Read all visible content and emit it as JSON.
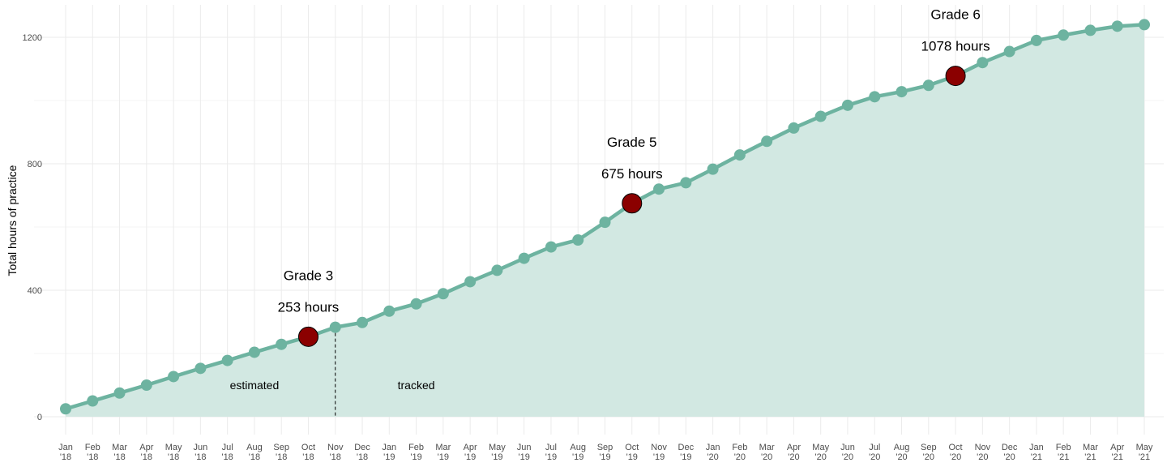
{
  "chart_data": {
    "type": "area",
    "title": "",
    "xlabel": "",
    "ylabel": "Total hours of practice",
    "ylim": [
      0,
      1270
    ],
    "yticks": [
      0,
      400,
      800,
      1200
    ],
    "grid": true,
    "x": [
      "Jan\n'18",
      "Feb\n'18",
      "Mar\n'18",
      "Apr\n'18",
      "May\n'18",
      "Jun\n'18",
      "Jul\n'18",
      "Aug\n'18",
      "Sep\n'18",
      "Oct\n'18",
      "Nov\n'18",
      "Dec\n'18",
      "Jan\n'19",
      "Feb\n'19",
      "Mar\n'19",
      "Apr\n'19",
      "May\n'19",
      "Jun\n'19",
      "Jul\n'19",
      "Aug\n'19",
      "Sep\n'19",
      "Oct\n'19",
      "Nov\n'19",
      "Dec\n'19",
      "Jan\n'20",
      "Feb\n'20",
      "Mar\n'20",
      "Apr\n'20",
      "May\n'20",
      "Jun\n'20",
      "Jul\n'20",
      "Aug\n'20",
      "Sep\n'20",
      "Oct\n'20",
      "Nov\n'20",
      "Dec\n'20",
      "Jan\n'21",
      "Feb\n'21",
      "Mar\n'21",
      "Apr\n'21",
      "May\n'21"
    ],
    "series": [
      {
        "values": [
          25,
          50,
          75,
          100,
          127,
          153,
          178,
          204,
          229,
          253,
          283,
          298,
          334,
          357,
          389,
          427,
          463,
          501,
          537,
          559,
          615,
          675,
          720,
          740,
          783,
          828,
          871,
          913,
          950,
          985,
          1012,
          1028,
          1048,
          1078,
          1120,
          1155,
          1190,
          1207,
          1222,
          1235,
          1240
        ],
        "color": "#6db3a0",
        "fill": "#d2e8e2"
      }
    ],
    "milestones": [
      {
        "index": 9,
        "label": "Grade 3",
        "hours_label": "253 hours",
        "value": 253
      },
      {
        "index": 21,
        "label": "Grade 5",
        "hours_label": "675 hours",
        "value": 675
      },
      {
        "index": 33,
        "label": "Grade 6",
        "hours_label": "1078 hours",
        "value": 1078
      }
    ],
    "milestone_color": "#8b0000",
    "divider_index": 10,
    "region_labels": {
      "left": "estimated",
      "right": "tracked"
    }
  }
}
